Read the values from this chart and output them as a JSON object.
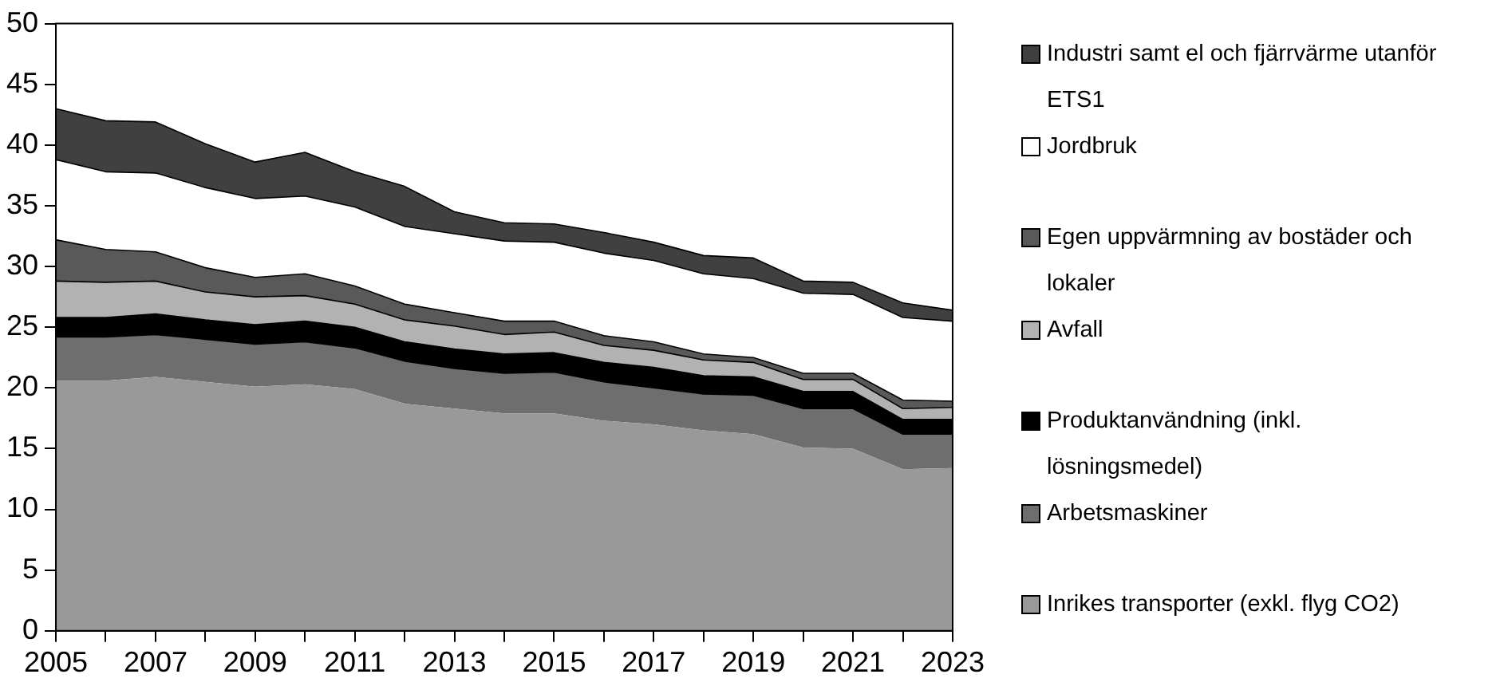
{
  "chart_data": {
    "type": "area",
    "stacked": true,
    "x": [
      2005,
      2006,
      2007,
      2008,
      2009,
      2010,
      2011,
      2012,
      2013,
      2014,
      2015,
      2016,
      2017,
      2018,
      2019,
      2020,
      2021,
      2022,
      2023
    ],
    "xlim": [
      2005,
      2023
    ],
    "xticks": [
      2005,
      {
        "value": 2006,
        "label": null
      },
      2007,
      {
        "value": 2008,
        "label": null
      },
      2009,
      {
        "value": 2010,
        "label": null
      },
      2011,
      {
        "value": 2012,
        "label": null
      },
      2013,
      {
        "value": 2014,
        "label": null
      },
      2015,
      {
        "value": 2016,
        "label": null
      },
      2017,
      {
        "value": 2018,
        "label": null
      },
      2019,
      {
        "value": 2020,
        "label": null
      },
      2021,
      {
        "value": 2022,
        "label": null
      },
      2023
    ],
    "ylim": [
      0,
      50
    ],
    "yticks": [
      0,
      5,
      10,
      15,
      20,
      25,
      30,
      35,
      40,
      45,
      50
    ],
    "grid": false,
    "legend": "right",
    "series": [
      {
        "name": "Inrikes transporter (exkl. flyg CO2)",
        "color": "#999999",
        "values": [
          20.6,
          20.6,
          20.9,
          20.5,
          20.1,
          20.3,
          19.9,
          18.7,
          18.3,
          17.9,
          17.9,
          17.3,
          17.0,
          16.5,
          16.2,
          15.1,
          15.0,
          13.3,
          13.4
        ]
      },
      {
        "name": "Arbetsmaskiner",
        "color": "#6e6e6e",
        "values": [
          3.6,
          3.6,
          3.5,
          3.5,
          3.5,
          3.5,
          3.4,
          3.5,
          3.3,
          3.3,
          3.4,
          3.2,
          3.0,
          3.0,
          3.2,
          3.2,
          3.3,
          2.9,
          2.8
        ]
      },
      {
        "name": "Produktanvändning (inkl. lösningsmedel)",
        "color": "#000000",
        "values": [
          1.6,
          1.6,
          1.7,
          1.6,
          1.6,
          1.7,
          1.7,
          1.6,
          1.6,
          1.6,
          1.6,
          1.6,
          1.7,
          1.5,
          1.5,
          1.4,
          1.4,
          1.2,
          1.2
        ]
      },
      {
        "name": "Avfall",
        "color": "#b2b2b2",
        "values": [
          3.0,
          2.9,
          2.7,
          2.3,
          2.3,
          2.1,
          1.9,
          1.8,
          1.9,
          1.6,
          1.7,
          1.4,
          1.4,
          1.3,
          1.2,
          1.0,
          1.0,
          0.9,
          1.0
        ]
      },
      {
        "name": "Egen uppvärmning av bostäder och lokaler",
        "color": "#595959",
        "values": [
          3.4,
          2.7,
          2.4,
          2.0,
          1.6,
          1.8,
          1.5,
          1.3,
          1.1,
          1.1,
          0.9,
          0.8,
          0.7,
          0.5,
          0.4,
          0.5,
          0.5,
          0.7,
          0.5
        ]
      },
      {
        "name": "Jordbruk",
        "color": "#ffffff",
        "values": [
          6.6,
          6.4,
          6.5,
          6.6,
          6.5,
          6.4,
          6.5,
          6.4,
          6.5,
          6.6,
          6.5,
          6.8,
          6.7,
          6.6,
          6.5,
          6.6,
          6.5,
          6.8,
          6.6
        ]
      },
      {
        "name": "Industri samt el och fjärrvärme utanför ETS1",
        "color": "#404040",
        "values": [
          4.2,
          4.2,
          4.2,
          3.6,
          3.0,
          3.6,
          2.9,
          3.3,
          1.8,
          1.5,
          1.5,
          1.7,
          1.5,
          1.5,
          1.7,
          1.0,
          1.0,
          1.2,
          0.9
        ]
      }
    ]
  }
}
